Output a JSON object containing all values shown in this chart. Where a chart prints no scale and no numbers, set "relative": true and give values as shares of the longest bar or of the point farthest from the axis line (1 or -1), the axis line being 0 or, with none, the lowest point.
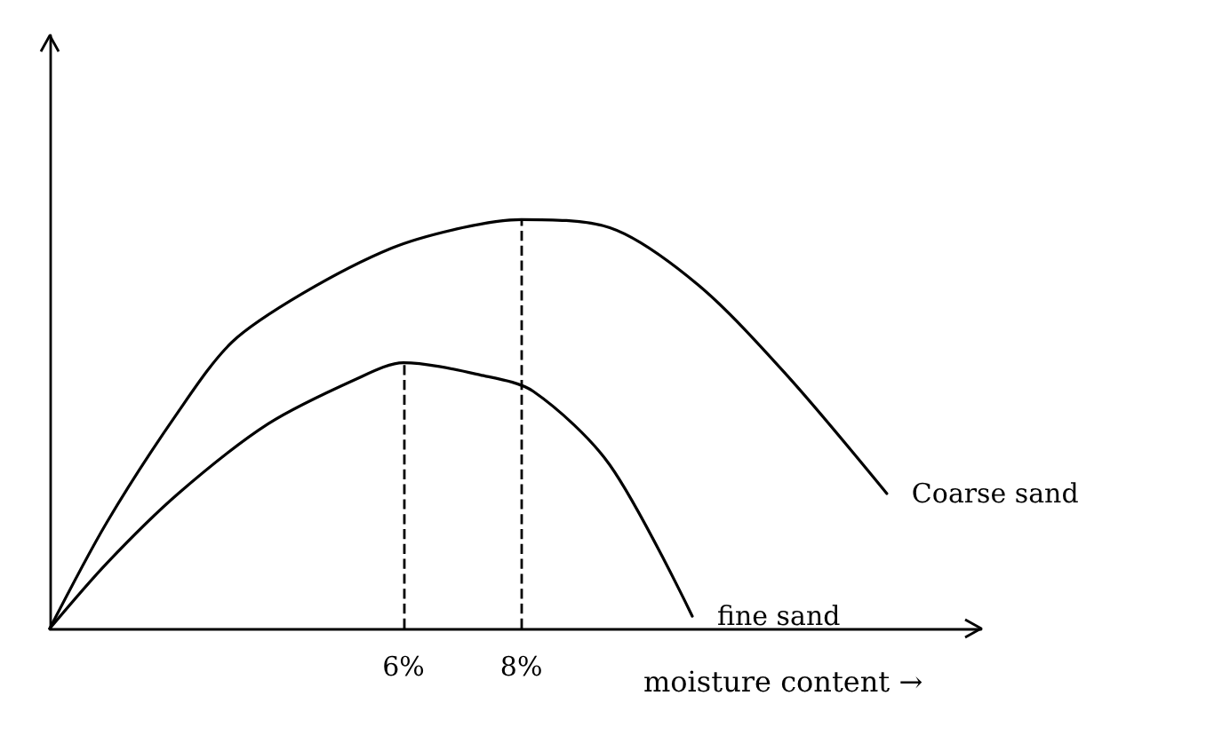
{
  "chart_data": {
    "type": "line",
    "relative": true,
    "xlabel": "moisture content →",
    "xlim": [
      0,
      15.8
    ],
    "xticks": [
      {
        "value": 6,
        "label": "6%"
      },
      {
        "value": 8,
        "label": "8%"
      }
    ],
    "tick_labels": "x",
    "grid": false,
    "legend": false,
    "marker": "none",
    "series": [
      {
        "name": "Coarse sand",
        "color": "#000000",
        "x": [
          0,
          0.97,
          2.18,
          3.09,
          4.3,
          5.8,
          7.0,
          8,
          9.5,
          11.0,
          12.5,
          14.2
        ],
        "values": [
          0,
          0.26,
          0.53,
          0.7,
          0.82,
          0.93,
          0.98,
          1,
          0.98,
          0.84,
          0.62,
          0.33
        ]
      },
      {
        "name": "fine sand",
        "color": "#000000",
        "x": [
          0,
          0.97,
          2.18,
          3.7,
          5.2,
          6,
          7.3,
          8.2,
          9.5,
          10.9
        ],
        "values": [
          0,
          0.16,
          0.33,
          0.5,
          0.61,
          0.65,
          0.62,
          0.58,
          0.4,
          0.03
        ]
      }
    ],
    "ref_lines": [
      {
        "axis": "x",
        "value": 6,
        "line_style": "dashed",
        "color": "#000000"
      },
      {
        "axis": "x",
        "value": 8,
        "line_style": "dashed",
        "color": "#000000"
      }
    ]
  }
}
